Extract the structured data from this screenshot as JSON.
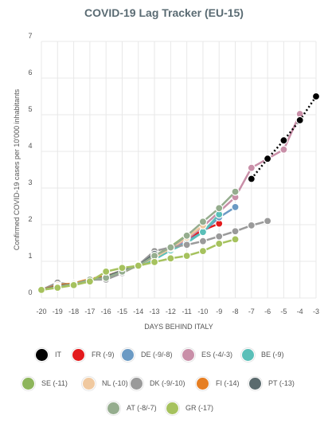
{
  "title": "COVID-19 Lag Tracker (EU-15)",
  "chart_data": {
    "type": "line",
    "title": "COVID-19 Lag Tracker (EU-15)",
    "xlabel": "DAYS BEHIND ITALY",
    "ylabel": "Confirmed COVID-19 cases per 10'000 inhabitants",
    "xlim": [
      -20,
      -3
    ],
    "ylim": [
      0,
      7
    ],
    "x_ticks": [
      "-20",
      "-19",
      "-18",
      "-17",
      "-16",
      "-15",
      "-14",
      "-13",
      "-12",
      "-11",
      "-10",
      "-9",
      "-8",
      "-7",
      "-6",
      "-5",
      "-4",
      "-3"
    ],
    "y_ticks": [
      "0",
      "1",
      "2",
      "3",
      "4",
      "5",
      "6",
      "7"
    ],
    "grid": true,
    "legend_position": "bottom",
    "series": [
      {
        "name": "IT",
        "color": "#000000",
        "dotted": true,
        "x": [
          -7,
          -6,
          -5,
          -4,
          -3
        ],
        "y": [
          3.25,
          3.8,
          4.3,
          4.85,
          5.5
        ]
      },
      {
        "name": "FR (-9)",
        "color": "#e31a1c",
        "x": [
          -20,
          -19,
          -18,
          -17,
          -16,
          -15,
          -14,
          -13,
          -12,
          -11,
          -10,
          -9
        ],
        "y": [
          0.22,
          0.3,
          0.38,
          0.5,
          0.6,
          0.75,
          0.9,
          1.1,
          1.35,
          1.6,
          1.85,
          2.03
        ]
      },
      {
        "name": "DE (-9/-8)",
        "color": "#6b9ac4",
        "x": [
          -20,
          -19,
          -18,
          -17,
          -16,
          -15,
          -14,
          -13,
          -12,
          -11,
          -10,
          -9,
          -8
        ],
        "y": [
          0.22,
          0.3,
          0.38,
          0.5,
          0.6,
          0.75,
          0.9,
          1.1,
          1.35,
          1.55,
          1.8,
          2.2,
          2.48
        ]
      },
      {
        "name": "ES (-4/-3)",
        "color": "#c98fa8",
        "x": [
          -20,
          -19,
          -18,
          -17,
          -16,
          -15,
          -14,
          -13,
          -12,
          -11,
          -10,
          -9,
          -8,
          -7,
          -6,
          -5,
          -4
        ],
        "y": [
          0.22,
          0.3,
          0.38,
          0.5,
          0.6,
          0.75,
          0.9,
          1.1,
          1.35,
          1.6,
          1.95,
          2.35,
          2.75,
          3.55,
          3.8,
          4.05,
          5.02
        ]
      },
      {
        "name": "BE (-9)",
        "color": "#5abfb8",
        "x": [
          -20,
          -19,
          -18,
          -17,
          -16,
          -15,
          -14,
          -13,
          -12,
          -11,
          -10,
          -9
        ],
        "y": [
          0.22,
          0.3,
          0.38,
          0.5,
          0.58,
          0.72,
          0.88,
          1.05,
          1.3,
          1.5,
          1.8,
          2.28
        ]
      },
      {
        "name": "SE (-11)",
        "color": "#8db55b",
        "x": [
          -20,
          -19,
          -18,
          -17,
          -16,
          -15,
          -14,
          -13,
          -12,
          -11
        ],
        "y": [
          0.22,
          0.3,
          0.38,
          0.5,
          0.6,
          0.72,
          0.9,
          1.15,
          1.4,
          1.72
        ]
      },
      {
        "name": "NL (-10)",
        "color": "#f0c9a0",
        "x": [
          -20,
          -19,
          -18,
          -17,
          -16,
          -15,
          -14,
          -13,
          -12,
          -11,
          -10
        ],
        "y": [
          0.22,
          0.3,
          0.38,
          0.5,
          0.6,
          0.75,
          0.9,
          1.1,
          1.35,
          1.65,
          1.98
        ]
      },
      {
        "name": "DK (-9/-10)",
        "color": "#9a9a9a",
        "x": [
          -20,
          -19,
          -18,
          -17,
          -16,
          -15,
          -14,
          -13,
          -12,
          -11,
          -10,
          -9,
          -8,
          -7,
          -6
        ],
        "y": [
          0.22,
          0.42,
          0.35,
          0.5,
          0.5,
          0.68,
          0.9,
          1.28,
          1.38,
          1.45,
          1.55,
          1.68,
          1.82,
          1.98,
          2.1
        ]
      },
      {
        "name": "FI (-14)",
        "color": "#e67e22",
        "x": [
          -20,
          -19,
          -18,
          -17,
          -16,
          -15,
          -14
        ],
        "y": [
          0.22,
          0.35,
          0.4,
          0.52,
          0.6,
          0.72,
          0.88
        ]
      },
      {
        "name": "PT (-13)",
        "color": "#5b6b6e",
        "x": [
          -20,
          -19,
          -18,
          -17,
          -16,
          -15,
          -14,
          -13
        ],
        "y": [
          0.22,
          0.32,
          0.38,
          0.48,
          0.58,
          0.75,
          0.88,
          1.2
        ]
      },
      {
        "name": "AT (-8/-7)",
        "color": "#95ad8e",
        "x": [
          -20,
          -19,
          -18,
          -17,
          -16,
          -15,
          -14,
          -13,
          -12,
          -11,
          -10,
          -9,
          -8
        ],
        "y": [
          0.22,
          0.3,
          0.38,
          0.5,
          0.55,
          0.72,
          0.88,
          1.15,
          1.38,
          1.7,
          2.08,
          2.45,
          2.9
        ]
      },
      {
        "name": "GR (-17)",
        "color": "#a6c25e",
        "x": [
          -20,
          -19,
          -18,
          -17,
          -16,
          -15,
          -14,
          -13,
          -12,
          -11,
          -10,
          -9,
          -8
        ],
        "y": [
          0.22,
          0.28,
          0.35,
          0.45,
          0.72,
          0.82,
          0.88,
          0.98,
          1.08,
          1.15,
          1.28,
          1.48,
          1.6
        ]
      }
    ]
  }
}
